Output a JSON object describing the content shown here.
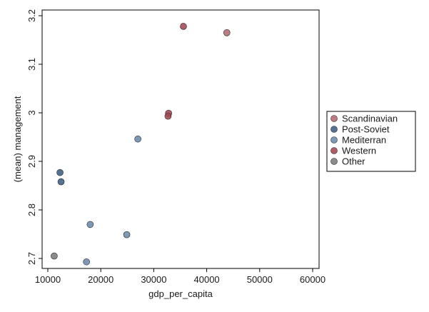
{
  "chart_data": {
    "type": "scatter",
    "xlabel": "gdp_per_capita",
    "ylabel": "(mean) management",
    "xlim": [
      10000,
      60000
    ],
    "ylim": [
      2.69,
      3.21
    ],
    "x_ticks": [
      10000,
      20000,
      30000,
      40000,
      50000,
      60000
    ],
    "y_ticks": [
      2.7,
      2.8,
      2.9,
      3,
      3.1,
      3.2
    ],
    "x_tick_labels": [
      "10000",
      "20000",
      "30000",
      "40000",
      "50000",
      "60000"
    ],
    "y_tick_labels": [
      "2.7",
      "2.8",
      "2.9",
      "3",
      "3.1",
      "3.2"
    ],
    "grid": false,
    "legend_position": "right",
    "series": [
      {
        "name": "Scandinavian",
        "color": "#b56a70",
        "points": [
          [
            43800,
            3.165
          ]
        ]
      },
      {
        "name": "Post-Soviet",
        "color": "#3d5f86",
        "points": [
          [
            12300,
            2.877
          ],
          [
            12500,
            2.858
          ]
        ]
      },
      {
        "name": "Mediterran",
        "color": "#6b8aad",
        "points": [
          [
            27000,
            2.946
          ],
          [
            18000,
            2.77
          ],
          [
            24900,
            2.749
          ],
          [
            17300,
            2.693
          ]
        ]
      },
      {
        "name": "Western",
        "color": "#a4464f",
        "points": [
          [
            35600,
            3.178
          ],
          [
            32800,
            2.999
          ],
          [
            32700,
            2.993
          ]
        ]
      },
      {
        "name": "Other",
        "color": "#7c7c7c",
        "points": [
          [
            11200,
            2.705
          ]
        ]
      }
    ]
  }
}
